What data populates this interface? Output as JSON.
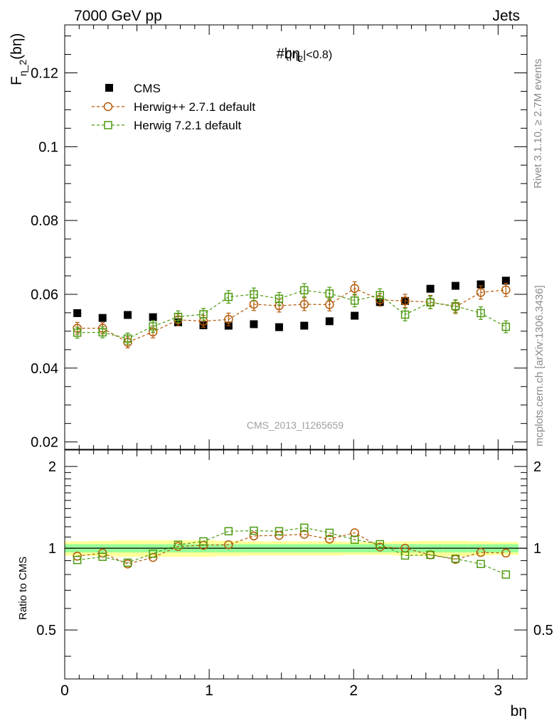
{
  "header": {
    "left": "7000 GeV pp",
    "right": "Jets"
  },
  "side_labels": {
    "rivet": "Rivet 3.1.10, ≥ 2.7M events",
    "mcplots": "mcplots.cern.ch [arXiv:1306.3436]"
  },
  "watermark": "CMS_2013_I1265659",
  "chart_data": [
    {
      "type": "scatter",
      "panel": "main",
      "title": {
        "main": "#bη",
        "paren_open": "(|η",
        "sub": "2",
        "paren_close": "|<0.8)"
      },
      "ylabel": {
        "main": "F",
        "sub": "η_2",
        "tail": "(bη)"
      },
      "xlim": [
        0,
        3.2
      ],
      "ylim": [
        0.018,
        0.133
      ],
      "yticks": [
        0.02,
        0.04,
        0.06,
        0.08,
        0.1,
        0.12
      ],
      "ytick_labels": [
        "0.02",
        "0.04",
        "0.06",
        "0.08",
        "0.1",
        "0.12"
      ],
      "grid": false,
      "legend_position": "top-left",
      "x": [
        0.087,
        0.262,
        0.436,
        0.611,
        0.785,
        0.96,
        1.134,
        1.309,
        1.484,
        1.658,
        1.833,
        2.007,
        2.182,
        2.356,
        2.531,
        2.705,
        2.88,
        3.054
      ],
      "series": [
        {
          "name": "CMS",
          "color": "#000000",
          "marker": "filled-square",
          "values": [
            0.0549,
            0.0536,
            0.0544,
            0.0538,
            0.0524,
            0.0516,
            0.0515,
            0.0519,
            0.0511,
            0.0515,
            0.0527,
            0.0542,
            0.0579,
            0.0582,
            0.0615,
            0.0623,
            0.0627,
            0.0637
          ]
        },
        {
          "name": "Herwig++ 2.7.1 default",
          "color": "#b35806",
          "marker": "open-circle",
          "values": [
            0.0508,
            0.0508,
            0.047,
            0.0498,
            0.0531,
            0.0527,
            0.0532,
            0.0573,
            0.0569,
            0.0573,
            0.0572,
            0.0616,
            0.0585,
            0.0582,
            0.0579,
            0.0566,
            0.0605,
            0.0612
          ],
          "errors": [
            0.0016,
            0.0015,
            0.0015,
            0.0016,
            0.0016,
            0.0016,
            0.0017,
            0.0017,
            0.0017,
            0.0017,
            0.0017,
            0.0018,
            0.0017,
            0.0018,
            0.0018,
            0.0018,
            0.0018,
            0.0018
          ]
        },
        {
          "name": "Herwig 7.2.1 default",
          "color": "#4d9a10",
          "marker": "open-square",
          "values": [
            0.0496,
            0.0497,
            0.048,
            0.0513,
            0.0539,
            0.0546,
            0.0593,
            0.06,
            0.0588,
            0.0611,
            0.0602,
            0.0583,
            0.0598,
            0.0545,
            0.0578,
            0.0568,
            0.0549,
            0.0512
          ],
          "errors": [
            0.0015,
            0.0015,
            0.0015,
            0.0016,
            0.0016,
            0.0016,
            0.0017,
            0.0017,
            0.0017,
            0.0018,
            0.0017,
            0.0017,
            0.0017,
            0.0017,
            0.0017,
            0.0017,
            0.0017,
            0.0016
          ]
        }
      ]
    },
    {
      "type": "line",
      "panel": "ratio",
      "ylabel": "Ratio to CMS",
      "xlabel": "bη",
      "xlim": [
        0,
        3.2
      ],
      "ylim": [
        0.33,
        2.3
      ],
      "yticks": [
        0.5,
        1,
        2
      ],
      "ytick_labels": [
        "0.5",
        "1",
        "2"
      ],
      "xticks": [
        0,
        1,
        2,
        3
      ],
      "xtick_labels": [
        "0",
        "1",
        "2",
        "3"
      ],
      "grid": false,
      "reference_line": 1,
      "band_colors": {
        "inner": "#99ff99",
        "outer": "#ffff99"
      },
      "band_inner_halfwidth": [
        0.035,
        0.035,
        0.035,
        0.035,
        0.035,
        0.035,
        0.035,
        0.035,
        0.035,
        0.035,
        0.035,
        0.035,
        0.035,
        0.035,
        0.035,
        0.035,
        0.035,
        0.035
      ],
      "band_outer_halfwidth": [
        0.06,
        0.065,
        0.07,
        0.07,
        0.07,
        0.07,
        0.065,
        0.06,
        0.06,
        0.06,
        0.06,
        0.055,
        0.055,
        0.06,
        0.065,
        0.065,
        0.06,
        0.055
      ],
      "x": [
        0.087,
        0.262,
        0.436,
        0.611,
        0.785,
        0.96,
        1.134,
        1.309,
        1.484,
        1.658,
        1.833,
        2.007,
        2.182,
        2.356,
        2.531,
        2.705,
        2.88,
        3.054
      ],
      "series": [
        {
          "name": "Herwig++ 2.7.1 default",
          "color": "#b35806",
          "marker": "open-circle",
          "values": [
            0.935,
            0.96,
            0.875,
            0.925,
            1.015,
            1.025,
            1.03,
            1.11,
            1.115,
            1.125,
            1.08,
            1.14,
            1.01,
            1.0,
            0.945,
            0.91,
            0.965,
            0.96
          ]
        },
        {
          "name": "Herwig 7.2.1 default",
          "color": "#4d9a10",
          "marker": "open-square",
          "values": [
            0.905,
            0.93,
            0.885,
            0.955,
            1.03,
            1.06,
            1.155,
            1.16,
            1.155,
            1.19,
            1.14,
            1.075,
            1.035,
            0.94,
            0.945,
            0.915,
            0.875,
            0.8
          ]
        }
      ]
    }
  ]
}
